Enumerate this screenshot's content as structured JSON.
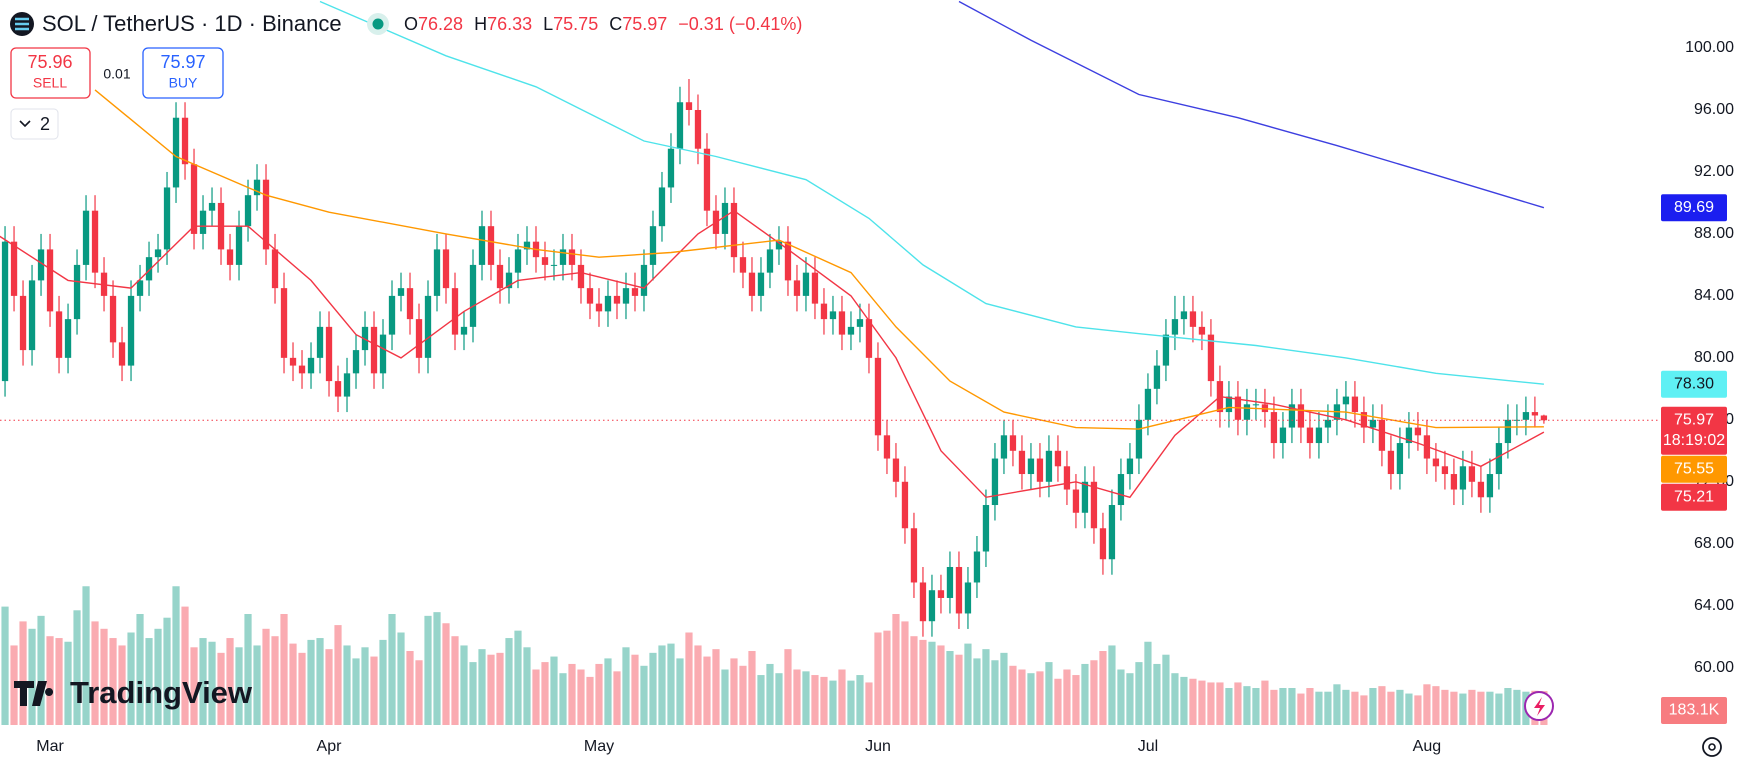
{
  "header": {
    "symbol": "SOL / TetherUS · 1D · Binance",
    "ohlc": [
      {
        "key": "O",
        "value": "76.28"
      },
      {
        "key": "H",
        "value": "76.33"
      },
      {
        "key": "L",
        "value": "75.75"
      },
      {
        "key": "C",
        "value": "75.97"
      }
    ],
    "change": "−0.31 (−0.41%)"
  },
  "trade": {
    "sell_price": "75.96",
    "sell_label": "SELL",
    "spread": "0.01",
    "buy_price": "75.97",
    "buy_label": "BUY"
  },
  "indicator_count": "2",
  "brand": "TradingView",
  "chart_data": {
    "type": "candlestick",
    "up_color": "#089981",
    "down_color": "#f23645",
    "xlim": [
      0.44,
      184.9
    ],
    "xticks": [
      {
        "value": 6,
        "label": "Mar"
      },
      {
        "value": 37,
        "label": "Apr"
      },
      {
        "value": 67,
        "label": "May"
      },
      {
        "value": 98,
        "label": "Jun"
      },
      {
        "value": 128,
        "label": "Jul"
      },
      {
        "value": 159,
        "label": "Aug"
      }
    ],
    "ylim": [
      56.3,
      103.1
    ],
    "yticks": [
      {
        "value": 60,
        "label": "60.00"
      },
      {
        "value": 64,
        "label": "64.00"
      },
      {
        "value": 68,
        "label": "68.00"
      },
      {
        "value": 72,
        "label": "72.00"
      },
      {
        "value": 76,
        "label": "76.00"
      },
      {
        "value": 80,
        "label": "80.00"
      },
      {
        "value": 84,
        "label": "84.00"
      },
      {
        "value": 88,
        "label": "88.00"
      },
      {
        "value": 92,
        "label": "92.00"
      },
      {
        "value": 96,
        "label": "96.00"
      },
      {
        "value": 100,
        "label": "100.00"
      }
    ],
    "ohlc": [
      [
        76,
        79.5,
        75,
        78.5
      ],
      [
        78.5,
        88.5,
        77.5,
        87.5
      ],
      [
        87.5,
        88.5,
        83,
        84
      ],
      [
        84,
        85,
        79.5,
        80.5
      ],
      [
        80.5,
        86,
        79.5,
        85
      ],
      [
        85,
        88,
        84,
        87
      ],
      [
        87,
        88,
        82,
        83
      ],
      [
        83,
        84,
        79,
        80
      ],
      [
        80,
        83.5,
        79,
        82.5
      ],
      [
        82.5,
        87,
        81.5,
        86
      ],
      [
        86,
        90.5,
        85,
        89.5
      ],
      [
        89.5,
        90.5,
        84.5,
        85.5
      ],
      [
        85.5,
        86.5,
        83,
        84
      ],
      [
        84,
        85,
        80,
        81
      ],
      [
        81,
        82,
        78.5,
        79.5
      ],
      [
        79.5,
        85,
        78.5,
        84
      ],
      [
        84,
        86,
        83,
        85
      ],
      [
        85,
        87.5,
        84,
        86.5
      ],
      [
        86.5,
        88,
        85.5,
        87
      ],
      [
        87,
        92,
        86,
        91
      ],
      [
        91,
        96.5,
        90,
        95.5
      ],
      [
        95.5,
        96.5,
        91.5,
        92.5
      ],
      [
        92.5,
        93.5,
        87,
        88
      ],
      [
        88,
        90.5,
        87,
        89.5
      ],
      [
        89.5,
        91,
        88.5,
        90
      ],
      [
        90,
        91,
        86,
        87
      ],
      [
        87,
        88,
        85,
        86
      ],
      [
        86,
        89.5,
        85,
        88.5
      ],
      [
        88.5,
        91.5,
        87.5,
        90.5
      ],
      [
        90.5,
        92.5,
        89.5,
        91.5
      ],
      [
        91.5,
        92.5,
        86,
        87
      ],
      [
        87,
        88,
        83.5,
        84.5
      ],
      [
        84.5,
        85.5,
        79,
        80
      ],
      [
        80,
        81,
        78.5,
        79.5
      ],
      [
        79.5,
        80.5,
        78,
        79
      ],
      [
        79,
        81,
        78,
        80
      ],
      [
        80,
        83,
        79,
        82
      ],
      [
        82,
        83,
        77.5,
        78.5
      ],
      [
        78.5,
        79.5,
        76.5,
        77.5
      ],
      [
        77.5,
        80,
        76.5,
        79
      ],
      [
        79,
        81.5,
        78,
        80.5
      ],
      [
        80.5,
        83,
        79.5,
        82
      ],
      [
        82,
        83,
        78,
        79
      ],
      [
        79,
        82.5,
        78,
        81.5
      ],
      [
        81.5,
        85,
        80.5,
        84
      ],
      [
        84,
        85.5,
        83,
        84.5
      ],
      [
        84.5,
        85.5,
        81.5,
        82.5
      ],
      [
        82.5,
        83.5,
        79,
        80
      ],
      [
        80,
        85,
        79,
        84
      ],
      [
        84,
        88,
        83,
        87
      ],
      [
        87,
        88,
        83.5,
        84.5
      ],
      [
        84.5,
        85.5,
        80.5,
        81.5
      ],
      [
        81.5,
        83,
        80.5,
        82
      ],
      [
        82,
        87,
        81,
        86
      ],
      [
        86,
        89.5,
        85,
        88.5
      ],
      [
        88.5,
        89.5,
        85,
        86
      ],
      [
        86,
        87,
        83.5,
        84.5
      ],
      [
        84.5,
        86.5,
        83.5,
        85.5
      ],
      [
        85.5,
        88,
        84.5,
        87
      ],
      [
        87,
        88.5,
        86,
        87.5
      ],
      [
        87.5,
        88.5,
        85.5,
        86.5
      ],
      [
        86.5,
        87.5,
        85,
        86
      ],
      [
        86,
        87,
        85,
        86
      ],
      [
        86,
        88,
        85,
        87
      ],
      [
        87,
        88,
        85,
        86
      ],
      [
        86,
        87,
        83.5,
        84.5
      ],
      [
        84.5,
        85.5,
        82.5,
        83.5
      ],
      [
        83.5,
        84.5,
        82,
        83
      ],
      [
        83,
        85,
        82,
        84
      ],
      [
        84,
        85,
        82.5,
        83.5
      ],
      [
        83.5,
        85.5,
        82.5,
        84.5
      ],
      [
        84.5,
        85.5,
        83,
        84
      ],
      [
        84,
        87,
        83,
        86
      ],
      [
        86,
        89.5,
        85,
        88.5
      ],
      [
        88.5,
        92,
        87.5,
        91
      ],
      [
        91,
        94.5,
        90,
        93.5
      ],
      [
        93.5,
        97.5,
        92.5,
        96.5
      ],
      [
        96.5,
        98,
        95,
        96
      ],
      [
        96,
        97,
        92.5,
        93.5
      ],
      [
        93.5,
        94.5,
        88.5,
        89.5
      ],
      [
        89.5,
        90.5,
        87,
        88
      ],
      [
        88,
        91,
        87,
        90
      ],
      [
        90,
        91,
        85.5,
        86.5
      ],
      [
        86.5,
        87.5,
        84.5,
        85.5
      ],
      [
        85.5,
        86.5,
        83,
        84
      ],
      [
        84,
        86.5,
        83,
        85.5
      ],
      [
        85.5,
        88,
        84.5,
        87
      ],
      [
        87,
        88.5,
        86,
        87.5
      ],
      [
        87.5,
        88.5,
        84,
        85
      ],
      [
        85,
        86,
        83,
        84
      ],
      [
        84,
        86.5,
        83,
        85.5
      ],
      [
        85.5,
        86.5,
        82.5,
        83.5
      ],
      [
        83.5,
        84.5,
        81.5,
        82.5
      ],
      [
        82.5,
        84,
        81.5,
        83
      ],
      [
        83,
        84,
        80.5,
        81.5
      ],
      [
        81.5,
        83,
        80.5,
        82
      ],
      [
        82,
        83.5,
        81,
        82.5
      ],
      [
        82.5,
        83.5,
        79,
        80
      ],
      [
        80,
        81,
        74,
        75
      ],
      [
        75,
        76,
        72.5,
        73.5
      ],
      [
        73.5,
        74.5,
        71,
        72
      ],
      [
        72,
        73,
        68,
        69
      ],
      [
        69,
        70,
        64.5,
        65.5
      ],
      [
        65.5,
        66.5,
        62,
        63
      ],
      [
        63,
        66,
        62,
        65
      ],
      [
        65,
        66,
        63.5,
        64.5
      ],
      [
        64.5,
        67.5,
        63.5,
        66.5
      ],
      [
        66.5,
        67.5,
        62.5,
        63.5
      ],
      [
        63.5,
        66.5,
        62.5,
        65.5
      ],
      [
        65.5,
        68.5,
        64.5,
        67.5
      ],
      [
        67.5,
        71.5,
        66.5,
        70.5
      ],
      [
        70.5,
        74.5,
        69.5,
        73.5
      ],
      [
        73.5,
        76,
        72.5,
        75
      ],
      [
        75,
        76,
        73,
        74
      ],
      [
        74,
        75,
        71.5,
        72.5
      ],
      [
        72.5,
        74.5,
        71.5,
        73.5
      ],
      [
        73.5,
        74.5,
        71,
        72
      ],
      [
        72,
        75,
        71,
        74
      ],
      [
        74,
        75,
        72,
        73
      ],
      [
        73,
        74,
        70.5,
        71.5
      ],
      [
        71.5,
        72.5,
        69,
        70
      ],
      [
        70,
        73,
        69,
        72
      ],
      [
        72,
        73,
        68,
        69
      ],
      [
        69,
        70,
        66,
        67
      ],
      [
        67,
        71.5,
        66,
        70.5
      ],
      [
        70.5,
        73.5,
        69.5,
        72.5
      ],
      [
        72.5,
        74.5,
        71.5,
        73.5
      ],
      [
        73.5,
        77,
        72.5,
        76
      ],
      [
        76,
        79,
        75,
        78
      ],
      [
        78,
        80.5,
        77,
        79.5
      ],
      [
        79.5,
        82.5,
        78.5,
        81.5
      ],
      [
        81.5,
        84,
        80.5,
        82.5
      ],
      [
        82.5,
        84,
        81.5,
        83
      ],
      [
        83,
        84,
        81,
        82
      ],
      [
        82,
        83,
        80.5,
        81.5
      ],
      [
        81.5,
        82.5,
        77.5,
        78.5
      ],
      [
        78.5,
        79.5,
        75.5,
        76.5
      ],
      [
        76.5,
        78.5,
        75.5,
        77.5
      ],
      [
        77.5,
        78.5,
        75,
        76
      ],
      [
        76,
        78,
        75,
        77
      ],
      [
        77,
        78,
        76,
        77
      ],
      [
        77,
        78,
        75.5,
        76.5
      ],
      [
        76.5,
        77.5,
        73.5,
        74.5
      ],
      [
        74.5,
        76.5,
        73.5,
        75.5
      ],
      [
        75.5,
        78,
        74.5,
        77
      ],
      [
        77,
        78,
        74.5,
        75.5
      ],
      [
        75.5,
        76.5,
        73.5,
        74.5
      ],
      [
        74.5,
        76.5,
        73.5,
        75.5
      ],
      [
        75.5,
        77,
        74.5,
        76
      ],
      [
        76,
        78,
        75,
        77
      ],
      [
        77,
        78.5,
        76,
        77.5
      ],
      [
        77.5,
        78.5,
        75.5,
        76.5
      ],
      [
        76.5,
        77.5,
        74.5,
        75.5
      ],
      [
        75.5,
        77,
        74.5,
        76
      ],
      [
        76,
        77,
        73,
        74
      ],
      [
        74,
        75,
        71.5,
        72.5
      ],
      [
        72.5,
        75.5,
        71.5,
        74.5
      ],
      [
        74.5,
        76.5,
        73.5,
        75.5
      ],
      [
        75.5,
        76.5,
        74,
        75
      ],
      [
        75,
        76,
        72.5,
        73.5
      ],
      [
        73.5,
        74.5,
        72,
        73
      ],
      [
        73,
        74,
        71.5,
        72.5
      ],
      [
        72.5,
        73.5,
        70.5,
        71.5
      ],
      [
        71.5,
        74,
        70.5,
        73
      ],
      [
        73,
        74,
        71,
        72
      ],
      [
        72,
        73,
        70,
        71
      ],
      [
        71,
        73.5,
        70,
        72.5
      ],
      [
        72.5,
        75.5,
        71.5,
        74.5
      ],
      [
        74.5,
        77,
        73.5,
        76
      ],
      [
        76,
        77,
        75,
        76
      ],
      [
        76,
        77.5,
        75,
        76.5
      ],
      [
        76.5,
        77.5,
        75.5,
        76.28
      ],
      [
        76.28,
        76.33,
        75.75,
        75.97
      ]
    ],
    "volumes": [
      700,
      640,
      430,
      560,
      520,
      590,
      480,
      470,
      450,
      620,
      750,
      560,
      520,
      470,
      430,
      500,
      600,
      470,
      520,
      580,
      750,
      640,
      420,
      470,
      450,
      390,
      470,
      420,
      600,
      430,
      520,
      480,
      600,
      440,
      390,
      460,
      470,
      410,
      540,
      430,
      360,
      420,
      370,
      460,
      600,
      500,
      400,
      350,
      590,
      610,
      550,
      480,
      430,
      340,
      410,
      380,
      390,
      470,
      510,
      420,
      300,
      340,
      370,
      280,
      330,
      300,
      260,
      330,
      360,
      290,
      420,
      380,
      320,
      390,
      430,
      440,
      360,
      500,
      430,
      370,
      410,
      300,
      360,
      320,
      400,
      270,
      330,
      280,
      410,
      300,
      290,
      270,
      260,
      240,
      300,
      240,
      270,
      230,
      500,
      510,
      600,
      560,
      480,
      460,
      450,
      430,
      400,
      380,
      440,
      360,
      410,
      350,
      390,
      320,
      300,
      280,
      290,
      340,
      250,
      300,
      270,
      330,
      350,
      400,
      430,
      300,
      280,
      340,
      450,
      330,
      380,
      280,
      260,
      250,
      240,
      230,
      230,
      200,
      230,
      210,
      200,
      240,
      190,
      200,
      200,
      170,
      200,
      180,
      180,
      220,
      190,
      180,
      160,
      200,
      210,
      180,
      190,
      170,
      160,
      220,
      210,
      190,
      180,
      170,
      190,
      180,
      180,
      170,
      200,
      190,
      180,
      185,
      183.1
    ],
    "volume_label": "183.1K",
    "indicators": [
      {
        "color": "#f23645",
        "x": [
          0,
          8,
          15,
          22,
          28,
          35,
          40,
          45,
          52,
          58,
          65,
          72,
          78,
          82,
          88,
          95,
          100,
          105,
          110,
          115,
          120,
          126,
          131,
          136,
          142,
          150,
          158,
          165,
          172
        ],
        "values": [
          88,
          85,
          84.5,
          88.5,
          88.5,
          85,
          81.5,
          80,
          83,
          85,
          85.5,
          84.5,
          88,
          89.5,
          87,
          84,
          80,
          74,
          71,
          71.5,
          72,
          71,
          75,
          77.5,
          77,
          76,
          74.5,
          73,
          75.21
        ]
      },
      {
        "color": "#ff9800",
        "x": [
          11,
          20,
          30,
          37,
          50,
          60,
          67,
          75,
          87,
          95,
          100,
          106,
          112,
          120,
          127,
          137,
          150,
          160,
          172
        ],
        "values": [
          97.3,
          93,
          90.5,
          89.4,
          88,
          87,
          86.5,
          86.8,
          87.6,
          85.5,
          82,
          78.5,
          76.5,
          75.5,
          75.4,
          76.8,
          76.5,
          75.5,
          75.55
        ]
      },
      {
        "color": "#4ee3ea",
        "x": [
          36,
          50,
          60,
          72,
          80,
          90,
          97,
          103,
          110,
          120,
          128,
          140,
          150,
          160,
          172
        ],
        "values": [
          103,
          99.5,
          97.5,
          94,
          93,
          91.5,
          89,
          86,
          83.5,
          82,
          81.5,
          80.8,
          80,
          79,
          78.3
        ]
      },
      {
        "color": "#3d3fe0",
        "x": [
          107,
          115,
          127,
          138,
          149,
          160,
          172
        ],
        "values": [
          103,
          100.5,
          97,
          95.5,
          93.7,
          91.8,
          89.69
        ]
      }
    ],
    "price_badges": [
      {
        "value": 89.69,
        "label": "89.69",
        "color": "#1b1ef0",
        "text_color": "#ffffff"
      },
      {
        "value": 78.3,
        "label": "78.30",
        "color": "#5ff0f4",
        "text_color": "#131722"
      },
      {
        "value": 75.97,
        "label": "75.97",
        "sub": "18:19:02",
        "color": "#f23645",
        "text_color": "#ffffff"
      },
      {
        "value": 75.55,
        "label": "75.55",
        "color": "#ff9800",
        "text_color": "#ffffff"
      },
      {
        "value": 75.21,
        "label": "75.21",
        "color": "#f23645",
        "text_color": "#ffffff"
      }
    ]
  }
}
